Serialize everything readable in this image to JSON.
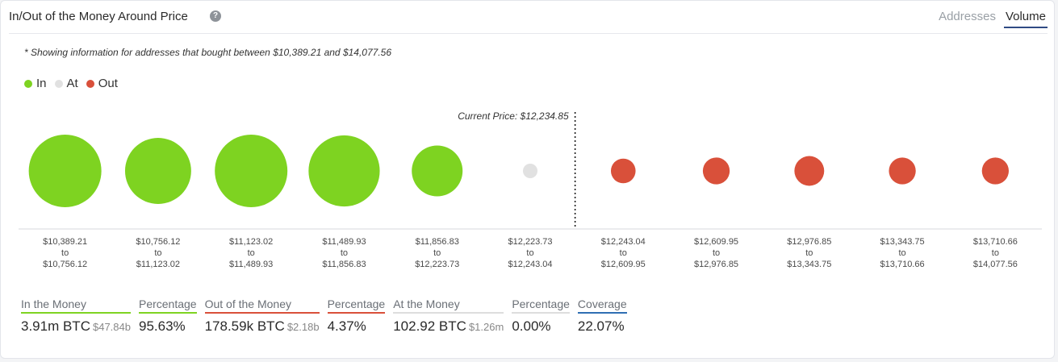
{
  "header": {
    "title": "In/Out of the Money Around Price",
    "help_glyph": "?",
    "tabs": [
      {
        "label": "Addresses",
        "active": false
      },
      {
        "label": "Volume",
        "active": true
      }
    ]
  },
  "note": "* Showing information for addresses that bought between $10,389.21 and $14,077.56",
  "legend": [
    {
      "label": "In",
      "color": "#7ed321"
    },
    {
      "label": "At",
      "color": "#e1e1e1"
    },
    {
      "label": "Out",
      "color": "#d9503a"
    }
  ],
  "chart_data": {
    "type": "bubble",
    "title": "In/Out of the Money Around Price",
    "current_price_label": "Current Price: $12,234.85",
    "current_price_after_index": 5,
    "categories": [
      {
        "from": "$10,389.21",
        "to": "$10,756.12",
        "status": "in",
        "relative_size": 1.0
      },
      {
        "from": "$10,756.12",
        "to": "$11,123.02",
        "status": "in",
        "relative_size": 0.91
      },
      {
        "from": "$11,123.02",
        "to": "$11,489.93",
        "status": "in",
        "relative_size": 1.0
      },
      {
        "from": "$11,489.93",
        "to": "$11,856.83",
        "status": "in",
        "relative_size": 0.98
      },
      {
        "from": "$11,856.83",
        "to": "$12,223.73",
        "status": "in",
        "relative_size": 0.7
      },
      {
        "from": "$12,223.73",
        "to": "$12,243.04",
        "status": "at",
        "relative_size": 0.2
      },
      {
        "from": "$12,243.04",
        "to": "$12,609.95",
        "status": "out",
        "relative_size": 0.34
      },
      {
        "from": "$12,609.95",
        "to": "$12,976.85",
        "status": "out",
        "relative_size": 0.37
      },
      {
        "from": "$12,976.85",
        "to": "$13,343.75",
        "status": "out",
        "relative_size": 0.41
      },
      {
        "from": "$13,343.75",
        "to": "$13,710.66",
        "status": "out",
        "relative_size": 0.37
      },
      {
        "from": "$13,710.66",
        "to": "$14,077.56",
        "status": "out",
        "relative_size": 0.37
      }
    ],
    "range_connector": "to"
  },
  "stats": [
    {
      "label": "In the Money",
      "value": "3.91m BTC",
      "sub": "$47.84b",
      "color": "#7ed321"
    },
    {
      "label": "Percentage",
      "value": "95.63%",
      "sub": "",
      "color": "#7ed321"
    },
    {
      "label": "Out of the Money",
      "value": "178.59k BTC",
      "sub": "$2.18b",
      "color": "#d9503a"
    },
    {
      "label": "Percentage",
      "value": "4.37%",
      "sub": "",
      "color": "#d9503a"
    },
    {
      "label": "At the Money",
      "value": "102.92 BTC",
      "sub": "$1.26m",
      "color": "#dddddd"
    },
    {
      "label": "Percentage",
      "value": "0.00%",
      "sub": "",
      "color": "#dddddd"
    },
    {
      "label": "Coverage",
      "value": "22.07%",
      "sub": "",
      "color": "#2f6fb3"
    }
  ]
}
